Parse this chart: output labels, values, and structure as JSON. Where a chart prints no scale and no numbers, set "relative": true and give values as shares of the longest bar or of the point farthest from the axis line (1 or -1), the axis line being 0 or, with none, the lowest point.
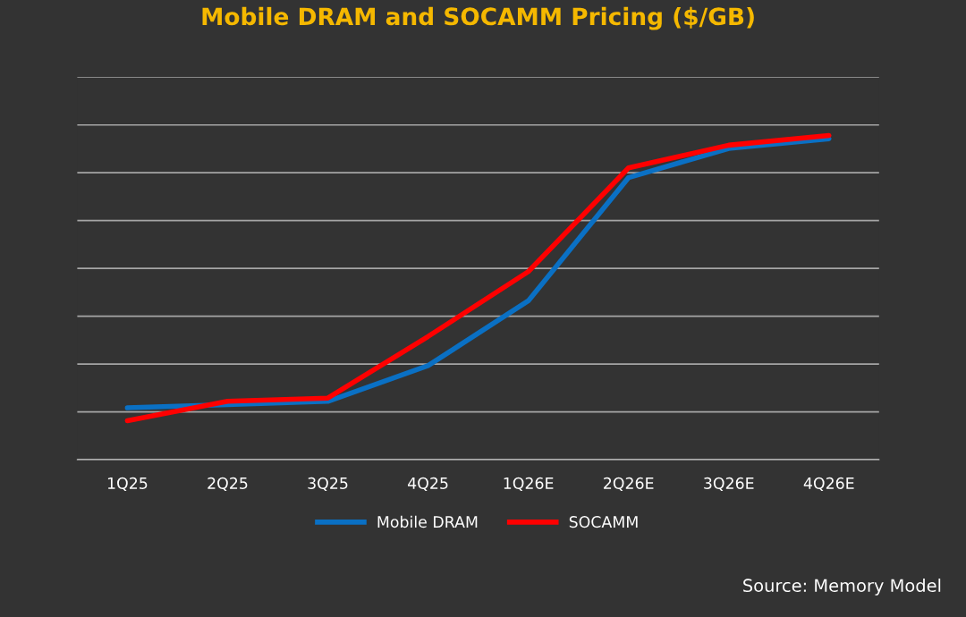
{
  "chart_data": {
    "type": "line",
    "title": "Mobile DRAM and SOCAMM Pricing ($/GB)",
    "categories": [
      "1Q25",
      "2Q25",
      "3Q25",
      "4Q25",
      "1Q26E",
      "2Q26E",
      "3Q26E",
      "4Q26E"
    ],
    "relative": true,
    "grid": "y",
    "legend": "bottom",
    "marker": "none",
    "line_style": "solid",
    "series": [
      {
        "name": "Mobile DRAM",
        "color": "#0a70c4",
        "values": [
          0.16,
          0.17,
          0.18,
          0.29,
          0.49,
          0.87,
          0.96,
          0.99
        ]
      },
      {
        "name": "SOCAMM",
        "color": "#ff0000",
        "values": [
          0.12,
          0.18,
          0.19,
          0.38,
          0.58,
          0.9,
          0.97,
          1.0
        ]
      }
    ],
    "annotations": [
      "Source: Memory Model"
    ]
  }
}
